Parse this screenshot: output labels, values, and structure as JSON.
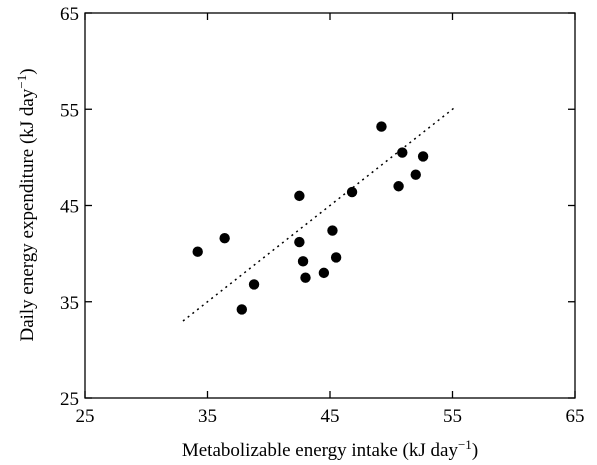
{
  "chart_data": {
    "type": "scatter",
    "xlabel": "Metabolizable energy intake (kJ day",
    "xlabel_sup": "−1",
    "xlabel_close": ")",
    "ylabel": "Daily energy expenditure (kJ day",
    "ylabel_sup": "−1",
    "ylabel_close": ")",
    "xlim": [
      25,
      65
    ],
    "ylim": [
      25,
      65
    ],
    "xticks": [
      25,
      35,
      45,
      55,
      65
    ],
    "yticks": [
      25,
      35,
      45,
      55,
      65
    ],
    "grid": false,
    "points": [
      {
        "x": 34.2,
        "y": 40.2
      },
      {
        "x": 36.4,
        "y": 41.6
      },
      {
        "x": 37.8,
        "y": 34.2
      },
      {
        "x": 38.8,
        "y": 36.8
      },
      {
        "x": 42.5,
        "y": 41.2
      },
      {
        "x": 42.5,
        "y": 46.0
      },
      {
        "x": 42.8,
        "y": 39.2
      },
      {
        "x": 43.0,
        "y": 37.5
      },
      {
        "x": 44.5,
        "y": 38.0
      },
      {
        "x": 45.2,
        "y": 42.4
      },
      {
        "x": 45.5,
        "y": 39.6
      },
      {
        "x": 46.8,
        "y": 46.4
      },
      {
        "x": 49.2,
        "y": 53.2
      },
      {
        "x": 50.6,
        "y": 47.0
      },
      {
        "x": 50.9,
        "y": 50.5
      },
      {
        "x": 52.0,
        "y": 48.2
      },
      {
        "x": 52.6,
        "y": 50.1
      }
    ],
    "trendline": {
      "x": [
        33,
        55.2
      ],
      "y": [
        33.0,
        55.2
      ],
      "style": "dotted"
    }
  }
}
